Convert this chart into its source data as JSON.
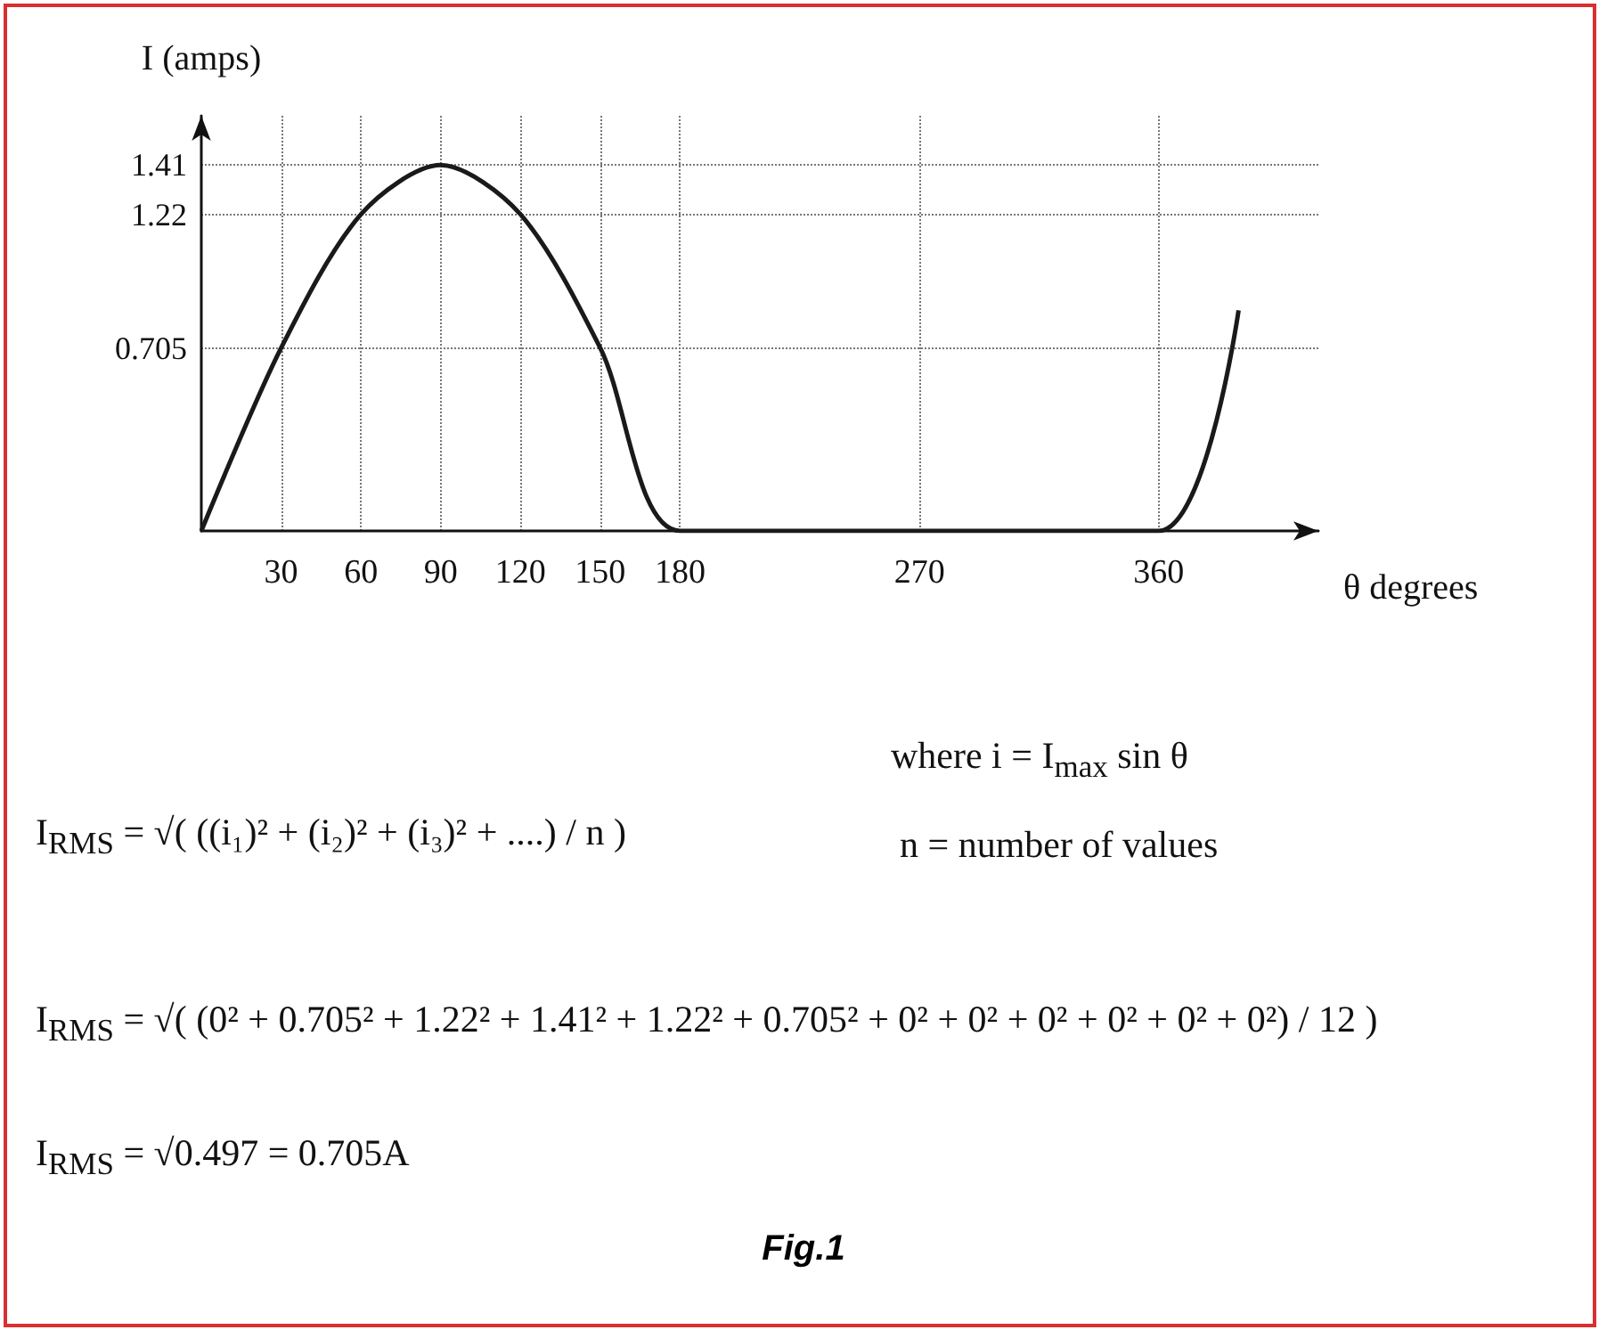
{
  "chart_data": {
    "type": "line",
    "title": "Fig.1",
    "xlabel": "θ degrees",
    "ylabel": "I (amps)",
    "x": [
      0,
      30,
      60,
      90,
      120,
      150,
      180,
      270,
      360,
      390
    ],
    "series": [
      {
        "color": "#1a1a1a",
        "values": [
          0,
          0.705,
          1.22,
          1.41,
          1.22,
          0.705,
          0,
          0,
          0,
          0.85
        ]
      }
    ],
    "xlim": [
      0,
      420
    ],
    "xticks": [
      30,
      60,
      90,
      120,
      150,
      180,
      270,
      360
    ],
    "ylim": [
      0,
      1.6
    ],
    "yticks": [
      0.705,
      1.22,
      1.41
    ],
    "grid": true,
    "marker": "none",
    "line_style": "solid",
    "annotations": [
      "I$_{RMS}$ = √( ((i₁)² + (i₂)² + (i₃)² + ....) / n )",
      "where i = I$_{max}$ sin θ",
      "n = number of  values",
      "I$_{RMS}$ = √( (0² + 0.705² + 1.22² + 1.41² + 1.22² + 0.705² + 0² + 0² + 0² + 0² + 0² + 0²) / 12 )",
      "I$_{RMS}$ = √0.497  = 0.705A"
    ]
  }
}
